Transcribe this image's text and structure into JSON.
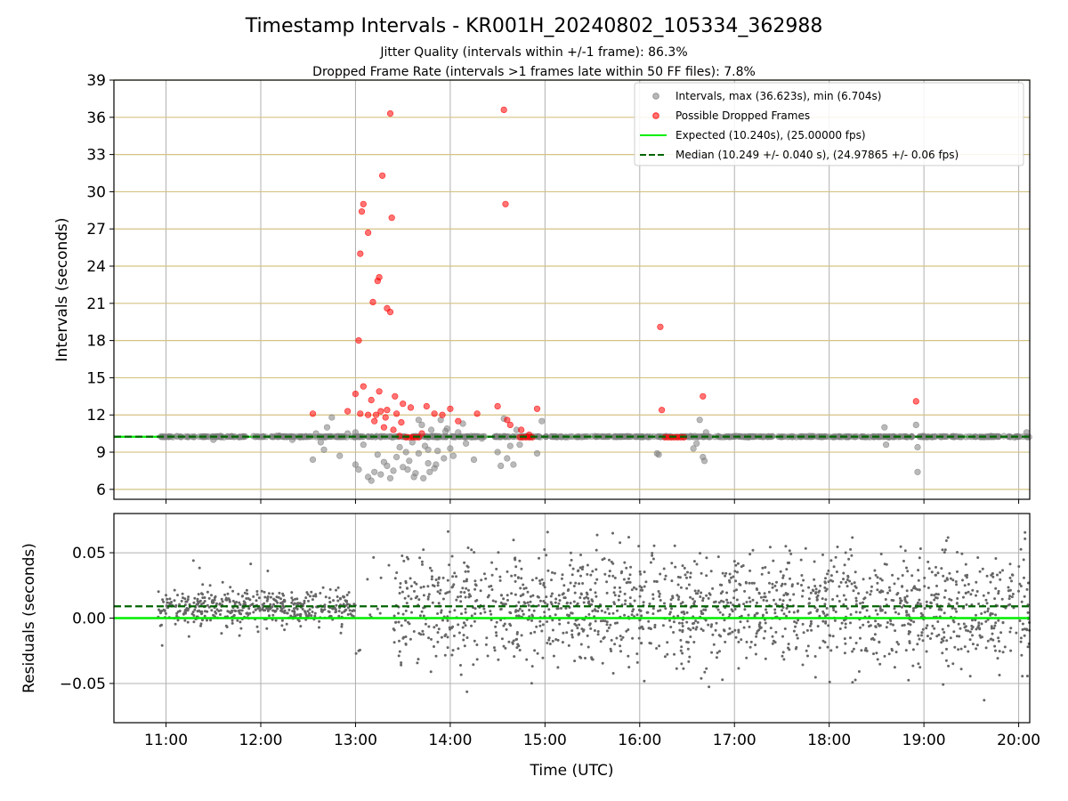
{
  "figure": {
    "title": "Timestamp Intervals - KR001H_20240802_105334_362988",
    "subtitle1": "Jitter Quality (intervals within +/-1 frame): 86.3%",
    "subtitle2": "Dropped Frame Rate (intervals >1 frames late within 50 FF files): 7.8%"
  },
  "colors": {
    "intervals": "#808080",
    "dropped": "#ff0000",
    "expected": "#00ee00",
    "median": "#006400",
    "yband": "#d4c383",
    "grid": "#b0b0b0"
  },
  "chart_data": [
    {
      "type": "scatter",
      "ylabel": "Intervals (seconds)",
      "xlim": [
        "10:27",
        "20:07"
      ],
      "ylim": [
        5.2,
        39
      ],
      "yticks": [
        6,
        9,
        12,
        15,
        18,
        21,
        24,
        27,
        30,
        33,
        36,
        39
      ],
      "grid": true,
      "legend_placement": "top-right",
      "legend": [
        "Intervals, max (36.623s), min (6.704s)",
        "Possible Dropped Frames",
        "Expected (10.240s), (25.00000 fps)",
        "Median (10.249 +/- 0.040 s), (24.97865 +/- 0.06 fps)"
      ],
      "expected_value": 10.24,
      "median_value": 10.249,
      "dropped_points": [
        [
          "13:02",
          18.0
        ],
        [
          "13:03",
          25.0
        ],
        [
          "13:04",
          28.4
        ],
        [
          "13:05",
          29.0
        ],
        [
          "13:08",
          26.7
        ],
        [
          "13:11",
          21.1
        ],
        [
          "13:14",
          22.8
        ],
        [
          "13:15",
          23.1
        ],
        [
          "13:17",
          31.3
        ],
        [
          "13:20",
          20.6
        ],
        [
          "13:22",
          20.3
        ],
        [
          "13:22",
          36.3
        ],
        [
          "13:23",
          27.9
        ],
        [
          "14:34",
          36.6
        ],
        [
          "14:35",
          29.0
        ],
        [
          "16:13",
          19.1
        ],
        [
          "16:40",
          13.5
        ],
        [
          "18:55",
          13.1
        ],
        [
          "12:33",
          12.1
        ],
        [
          "12:55",
          12.3
        ],
        [
          "13:00",
          13.7
        ],
        [
          "13:05",
          14.3
        ],
        [
          "13:10",
          13.2
        ],
        [
          "13:15",
          13.9
        ],
        [
          "13:20",
          12.4
        ],
        [
          "13:25",
          13.5
        ],
        [
          "13:30",
          12.9
        ],
        [
          "13:35",
          12.6
        ],
        [
          "13:45",
          12.7
        ],
        [
          "13:50",
          12.1
        ],
        [
          "13:55",
          12.0
        ],
        [
          "14:00",
          12.5
        ],
        [
          "14:05",
          11.5
        ],
        [
          "14:17",
          12.1
        ],
        [
          "14:30",
          12.7
        ],
        [
          "14:36",
          11.6
        ],
        [
          "14:38",
          11.2
        ],
        [
          "14:45",
          10.8
        ],
        [
          "14:50",
          10.4
        ],
        [
          "14:44",
          10.2
        ],
        [
          "14:46",
          10.2
        ],
        [
          "14:48",
          10.2
        ],
        [
          "14:50",
          10.2
        ],
        [
          "14:52",
          10.2
        ],
        [
          "14:55",
          12.5
        ],
        [
          "16:14",
          12.4
        ],
        [
          "16:16",
          10.2
        ],
        [
          "16:18",
          10.2
        ],
        [
          "16:20",
          10.2
        ],
        [
          "16:22",
          10.2
        ],
        [
          "16:24",
          10.2
        ],
        [
          "16:26",
          10.2
        ],
        [
          "16:28",
          10.2
        ],
        [
          "13:03",
          12.1
        ],
        [
          "13:08",
          12.0
        ],
        [
          "13:12",
          11.5
        ],
        [
          "13:18",
          11.0
        ],
        [
          "13:24",
          10.8
        ],
        [
          "13:28",
          10.3
        ],
        [
          "13:32",
          10.2
        ],
        [
          "13:34",
          10.2
        ],
        [
          "13:36",
          10.2
        ],
        [
          "13:38",
          10.2
        ],
        [
          "13:40",
          10.2
        ],
        [
          "13:42",
          10.5
        ],
        [
          "13:13",
          12.0
        ],
        [
          "13:16",
          12.3
        ],
        [
          "13:19",
          11.8
        ],
        [
          "13:26",
          12.1
        ],
        [
          "13:29",
          11.4
        ]
      ],
      "interval_outliers": [
        [
          "12:33",
          8.4
        ],
        [
          "12:40",
          9.2
        ],
        [
          "12:45",
          11.8
        ],
        [
          "12:50",
          8.7
        ],
        [
          "12:55",
          10.5
        ],
        [
          "13:00",
          8.0
        ],
        [
          "13:02",
          7.6
        ],
        [
          "13:05",
          9.6
        ],
        [
          "13:08",
          7.0
        ],
        [
          "13:10",
          6.7
        ],
        [
          "13:12",
          7.4
        ],
        [
          "13:14",
          8.8
        ],
        [
          "13:16",
          7.2
        ],
        [
          "13:18",
          8.2
        ],
        [
          "13:20",
          7.9
        ],
        [
          "13:22",
          6.9
        ],
        [
          "13:24",
          7.5
        ],
        [
          "13:26",
          8.6
        ],
        [
          "13:28",
          9.4
        ],
        [
          "13:30",
          7.8
        ],
        [
          "13:32",
          9.0
        ],
        [
          "13:34",
          8.3
        ],
        [
          "13:36",
          9.8
        ],
        [
          "13:38",
          7.3
        ],
        [
          "13:40",
          8.9
        ],
        [
          "13:42",
          11.2
        ],
        [
          "13:44",
          9.5
        ],
        [
          "13:46",
          8.1
        ],
        [
          "13:48",
          10.8
        ],
        [
          "13:50",
          7.7
        ],
        [
          "13:52",
          9.1
        ],
        [
          "13:54",
          11.6
        ],
        [
          "13:56",
          8.5
        ],
        [
          "13:58",
          10.9
        ],
        [
          "14:00",
          9.3
        ],
        [
          "14:02",
          8.7
        ],
        [
          "14:05",
          10.6
        ],
        [
          "14:10",
          9.7
        ],
        [
          "14:15",
          8.4
        ],
        [
          "14:20",
          10.1
        ],
        [
          "14:30",
          9.0
        ],
        [
          "14:32",
          7.9
        ],
        [
          "14:34",
          11.7
        ],
        [
          "14:36",
          8.5
        ],
        [
          "14:38",
          9.5
        ],
        [
          "14:40",
          8.0
        ],
        [
          "14:42",
          10.8
        ],
        [
          "14:44",
          9.6
        ],
        [
          "14:55",
          8.9
        ],
        [
          "14:58",
          11.5
        ],
        [
          "12:10",
          10.3
        ],
        [
          "12:20",
          10.0
        ],
        [
          "12:35",
          10.5
        ],
        [
          "12:38",
          9.8
        ],
        [
          "12:42",
          11.0
        ],
        [
          "16:11",
          8.9
        ],
        [
          "16:12",
          8.8
        ],
        [
          "16:34",
          9.3
        ],
        [
          "16:36",
          9.7
        ],
        [
          "16:38",
          11.6
        ],
        [
          "16:40",
          8.6
        ],
        [
          "16:41",
          8.3
        ],
        [
          "16:42",
          10.6
        ],
        [
          "18:35",
          11.0
        ],
        [
          "18:36",
          9.6
        ],
        [
          "18:55",
          11.2
        ],
        [
          "18:56",
          9.4
        ],
        [
          "18:56",
          7.4
        ],
        [
          "20:05",
          10.6
        ],
        [
          "11:30",
          10.0
        ],
        [
          "13:00",
          10.6
        ],
        [
          "13:40",
          11.6
        ],
        [
          "13:46",
          9.2
        ],
        [
          "14:08",
          11.3
        ],
        [
          "13:57",
          10.7
        ],
        [
          "13:33",
          7.6
        ],
        [
          "13:37",
          7.0
        ],
        [
          "13:43",
          6.9
        ],
        [
          "13:47",
          7.4
        ],
        [
          "13:51",
          8.0
        ]
      ]
    },
    {
      "type": "scatter",
      "ylabel": "Residuals (seconds)",
      "xlabel": "Time (UTC)",
      "xlim": [
        "10:27",
        "20:07"
      ],
      "ylim": [
        -0.08,
        0.08
      ],
      "yticks": [
        0.05,
        0.0,
        -0.05
      ],
      "ytick_labels": [
        "0.05",
        "0.00",
        "−0.05"
      ],
      "xticks": [
        "11:00",
        "12:00",
        "13:00",
        "14:00",
        "15:00",
        "16:00",
        "17:00",
        "18:00",
        "19:00",
        "20:00"
      ],
      "grid": true,
      "expected_value": 0.0,
      "median_value": 0.009,
      "generation": {
        "start": "10:55",
        "end": "20:07",
        "count": 2200,
        "low_noise_until": "13:00",
        "gap": [
          "13:00",
          "13:24"
        ],
        "sigma_early": 0.006,
        "sigma_late": 0.022,
        "center": 0.008
      }
    }
  ]
}
